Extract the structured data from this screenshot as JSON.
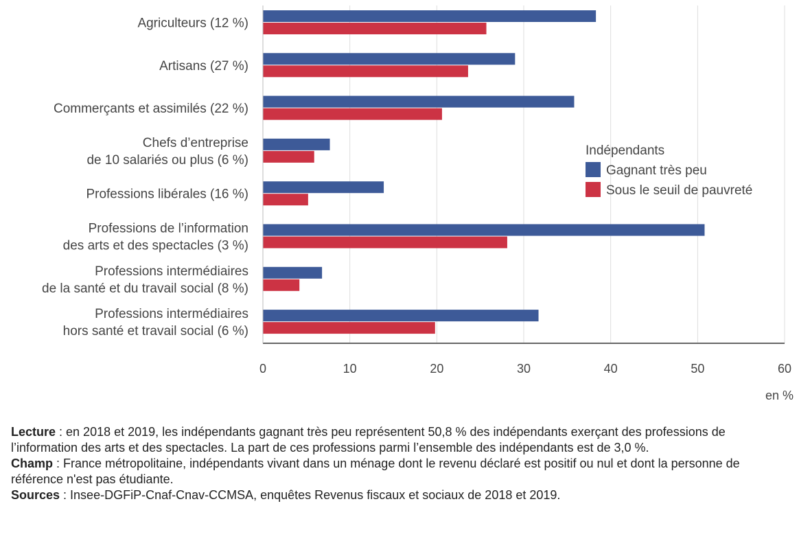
{
  "chart_data": {
    "type": "bar",
    "orientation": "horizontal",
    "categories": [
      [
        "Agriculteurs (12 %)"
      ],
      [
        "Artisans (27 %)"
      ],
      [
        "Commerçants et assimilés (22 %)"
      ],
      [
        "Chefs d’entreprise",
        "de 10 salariés ou plus (6 %)"
      ],
      [
        "Professions libérales (16 %)"
      ],
      [
        "Professions de l’information",
        "des arts et des spectacles (3 %)"
      ],
      [
        "Professions intermédiaires",
        "de la santé et du travail social (8 %)"
      ],
      [
        "Professions intermédiaires",
        "hors santé et travail social (6 %)"
      ]
    ],
    "series": [
      {
        "name": "Gagnant très peu",
        "color": "#3d5a98",
        "values": [
          38.3,
          29.0,
          35.8,
          7.7,
          13.9,
          50.8,
          6.8,
          31.7
        ]
      },
      {
        "name": "Sous le seuil de pauvreté",
        "color": "#cc3344",
        "values": [
          25.7,
          23.6,
          20.6,
          5.9,
          5.2,
          28.1,
          4.2,
          19.8
        ]
      }
    ],
    "legend_title": "Indépendants",
    "legend_position": "right",
    "xlim": [
      0,
      60
    ],
    "xticks": [
      "0",
      "10",
      "20",
      "30",
      "40",
      "50",
      "60"
    ],
    "xunit": "en %",
    "grid": true
  },
  "notes": {
    "lecture_label": "Lecture",
    "lecture_text": " : en 2018 et 2019, les indépendants gagnant très peu représentent 50,8 % des indépendants exerçant des professions de l’information des arts et des spectacles. La part de ces professions parmi l’ensemble des indépendants est de 3,0 %.",
    "champ_label": "Champ",
    "champ_text": " : France métropolitaine, indépendants vivant dans un ménage dont le revenu déclaré est positif ou nul et dont la personne de référence n'est pas étudiante.",
    "sources_label": "Sources",
    "sources_text": " : Insee-DGFiP-Cnaf-Cnav-CCMSA, enquêtes Revenus fiscaux et sociaux de 2018 et 2019."
  }
}
